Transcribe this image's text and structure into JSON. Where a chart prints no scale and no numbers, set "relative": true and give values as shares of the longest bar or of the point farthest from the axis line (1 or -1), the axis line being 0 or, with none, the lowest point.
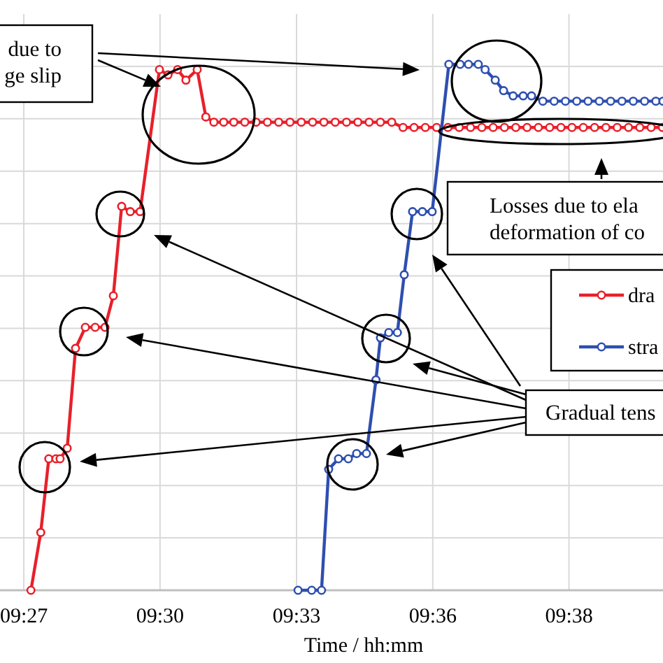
{
  "chart_data": {
    "type": "line",
    "relative": true,
    "xlabel": "Time / hh:mm",
    "xlim": [
      9.447,
      9.6699
    ],
    "xticks": [
      {
        "value": 9.455,
        "label": "09:27"
      },
      {
        "value": 9.5008,
        "label": "09:30"
      },
      {
        "value": 9.5467,
        "label": "09:33"
      },
      {
        "value": 9.5925,
        "label": "09:36"
      },
      {
        "value": 9.6383,
        "label": "09:38"
      }
    ],
    "grid": true,
    "legend": "right",
    "marker": "circle",
    "annotations": [
      "due to\nge slip",
      "Losses due to ela\ndeformation of co",
      "Gradual tens"
    ],
    "series": [
      {
        "name": "dra",
        "color": "#e8202a",
        "x": [
          9.4574,
          9.4607,
          9.4634,
          9.4658,
          9.4672,
          9.4696,
          9.4724,
          9.4757,
          9.479,
          9.4823,
          9.4851,
          9.4879,
          9.4908,
          9.4941,
          9.5006,
          9.5035,
          9.5067,
          9.5095,
          9.5133,
          9.5162,
          9.5189,
          9.5222,
          9.5256,
          9.5293,
          9.5331,
          9.5369,
          9.5407,
          9.5445,
          9.5483,
          9.5521,
          9.5559,
          9.5597,
          9.5635,
          9.5673,
          9.5711,
          9.5749,
          9.5787,
          9.5825,
          9.5862,
          9.59,
          9.5938,
          9.5976,
          9.6014,
          9.6052,
          9.609,
          9.6128,
          9.6166,
          9.6204,
          9.6242,
          9.628,
          9.6318,
          9.6356,
          9.6393,
          9.6431,
          9.6469,
          9.6507,
          9.6545,
          9.6583,
          9.6621,
          9.6659,
          9.6697
        ],
        "values": [
          0,
          0.11,
          0.25,
          0.25,
          0.25,
          0.27,
          0.46,
          0.5,
          0.5,
          0.5,
          0.56,
          0.73,
          0.72,
          0.72,
          0.99,
          0.98,
          0.99,
          0.97,
          0.99,
          0.9,
          0.89,
          0.89,
          0.89,
          0.89,
          0.89,
          0.89,
          0.89,
          0.89,
          0.89,
          0.89,
          0.89,
          0.89,
          0.89,
          0.89,
          0.89,
          0.89,
          0.89,
          0.88,
          0.88,
          0.88,
          0.88,
          0.88,
          0.88,
          0.88,
          0.88,
          0.88,
          0.88,
          0.88,
          0.88,
          0.88,
          0.88,
          0.88,
          0.88,
          0.88,
          0.88,
          0.88,
          0.88,
          0.88,
          0.88,
          0.88,
          0.88
        ]
      },
      {
        "name": "stra",
        "color": "#2e4fb0",
        "x": [
          9.5472,
          9.5518,
          9.5551,
          9.5575,
          9.5608,
          9.5641,
          9.5669,
          9.5702,
          9.5734,
          9.5749,
          9.5777,
          9.5806,
          9.5829,
          9.5857,
          9.589,
          9.5923,
          9.5979,
          9.6017,
          9.6045,
          9.6078,
          9.6101,
          9.6135,
          9.6163,
          9.6195,
          9.6229,
          9.6257,
          9.6295,
          9.6333,
          9.6371,
          9.6409,
          9.6447,
          9.6485,
          9.6523,
          9.6561,
          9.6599,
          9.6637,
          9.6675,
          9.6699
        ],
        "values": [
          0,
          0,
          0,
          0.23,
          0.25,
          0.25,
          0.26,
          0.26,
          0.4,
          0.48,
          0.49,
          0.49,
          0.6,
          0.72,
          0.72,
          0.72,
          1,
          1,
          1,
          1,
          0.99,
          0.97,
          0.95,
          0.94,
          0.94,
          0.94,
          0.93,
          0.93,
          0.93,
          0.93,
          0.93,
          0.93,
          0.93,
          0.93,
          0.93,
          0.93,
          0.93,
          0.93
        ]
      }
    ]
  }
}
